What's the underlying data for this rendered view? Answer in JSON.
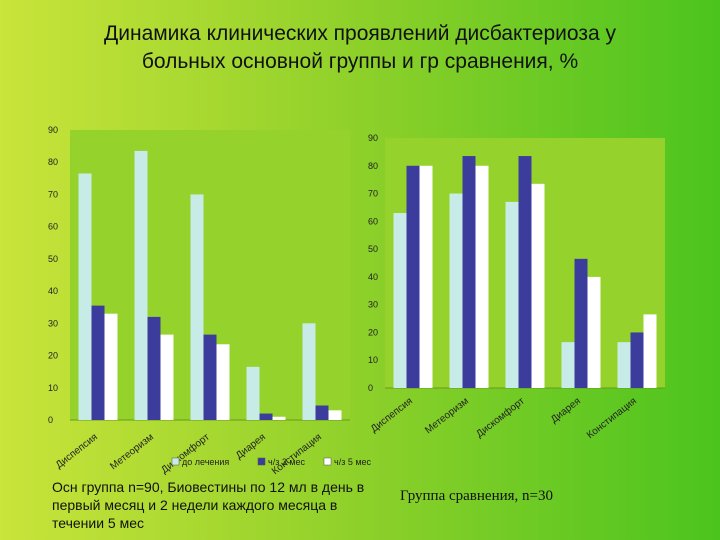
{
  "title": {
    "line1": "Динамика клинических     проявлений дисбактериоза у",
    "line2": "больных основной группы и гр сравнения, %"
  },
  "captions": {
    "left": "Осн группа n=90, Биовестины по 12 мл в день в первый месяц и 2 недели каждого месяца в течении 5 мес",
    "right": "Группа сравнения, n=30"
  },
  "colors": {
    "series1": "#c7ece8",
    "series2": "#3b3c9c",
    "series3": "#ffffff"
  },
  "chart_data": [
    {
      "type": "bar",
      "categories": [
        "Диспепсия",
        "Метеоризм",
        "Дискомфорт",
        "Диарея",
        "Констипация"
      ],
      "series": [
        {
          "name": "до лечения",
          "values": [
            76.5,
            83.5,
            70,
            16.5,
            30
          ]
        },
        {
          "name": "ч/з 2 мес",
          "values": [
            35.5,
            32,
            26.5,
            2,
            4.5
          ]
        },
        {
          "name": "ч/з 5 мес",
          "values": [
            33,
            26.5,
            23.5,
            1,
            3
          ]
        }
      ],
      "ylim": [
        0,
        90
      ],
      "yticks": [
        0,
        10,
        20,
        30,
        40,
        50,
        60,
        70,
        80,
        90
      ],
      "legend_position": "bottom"
    },
    {
      "type": "bar",
      "categories": [
        "Диспепсия",
        "Метеоризм",
        "Дискомфорт",
        "Диарея",
        "Констипация"
      ],
      "series": [
        {
          "values": [
            63,
            70,
            67,
            16.5,
            16.5
          ]
        },
        {
          "values": [
            80,
            83.5,
            83.5,
            46.5,
            20
          ]
        },
        {
          "values": [
            80,
            80,
            73.5,
            40,
            26.5
          ]
        }
      ],
      "ylim": [
        0,
        90
      ],
      "yticks": [
        0,
        10,
        20,
        30,
        40,
        50,
        60,
        70,
        80,
        90
      ]
    }
  ]
}
